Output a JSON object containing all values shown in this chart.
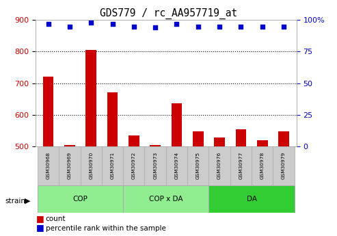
{
  "title": "GDS779 / rc_AA957719_at",
  "samples": [
    "GSM30968",
    "GSM30969",
    "GSM30970",
    "GSM30971",
    "GSM30972",
    "GSM30973",
    "GSM30974",
    "GSM30975",
    "GSM30976",
    "GSM30977",
    "GSM30978",
    "GSM30979"
  ],
  "count_values": [
    720,
    505,
    805,
    670,
    535,
    505,
    637,
    548,
    528,
    555,
    520,
    548
  ],
  "percentile_values": [
    97,
    95,
    98,
    97,
    95,
    94,
    97,
    95,
    95,
    95,
    95,
    95
  ],
  "ylim_left": [
    500,
    900
  ],
  "ylim_right": [
    0,
    100
  ],
  "yticks_left": [
    500,
    600,
    700,
    800,
    900
  ],
  "yticks_right": [
    0,
    25,
    50,
    75,
    100
  ],
  "right_tick_labels": [
    "0",
    "25",
    "50",
    "75",
    "100%"
  ],
  "groups": [
    {
      "label": "COP",
      "start": 0,
      "end": 4,
      "color": "#90EE90"
    },
    {
      "label": "COP x DA",
      "start": 4,
      "end": 8,
      "color": "#90EE90"
    },
    {
      "label": "DA",
      "start": 8,
      "end": 12,
      "color": "#32CD32"
    }
  ],
  "bar_color": "#CC0000",
  "dot_color": "#0000CC",
  "grid_color": "#000000",
  "label_count": "count",
  "label_percentile": "percentile rank within the sample"
}
